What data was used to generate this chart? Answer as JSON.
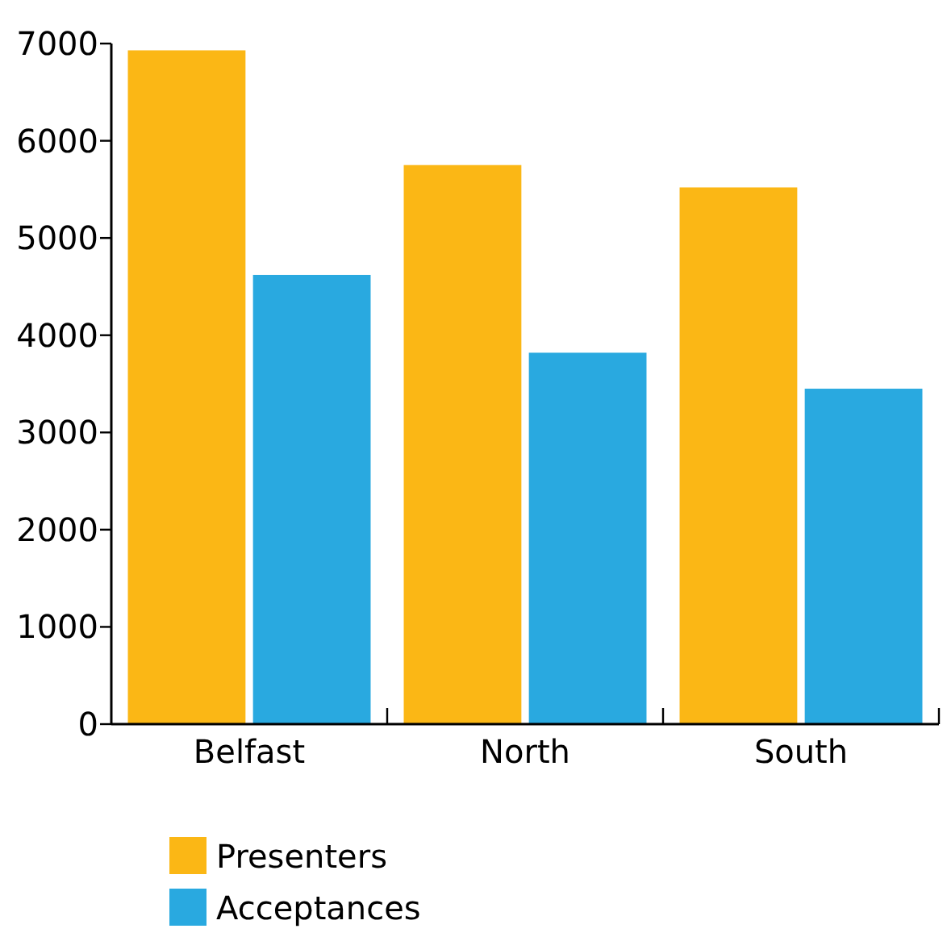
{
  "chart_data": {
    "type": "bar",
    "categories": [
      "Belfast",
      "North",
      "South"
    ],
    "series": [
      {
        "name": "Presenters",
        "color": "#fbb715",
        "values": [
          6930,
          5750,
          5520
        ]
      },
      {
        "name": "Acceptances",
        "color": "#29a9e0",
        "values": [
          4620,
          3820,
          3450
        ]
      }
    ],
    "ylim": [
      0,
      7000
    ],
    "yticks": [
      0,
      1000,
      2000,
      3000,
      4000,
      5000,
      6000,
      7000
    ],
    "grid": false,
    "legend": "bottom left"
  }
}
